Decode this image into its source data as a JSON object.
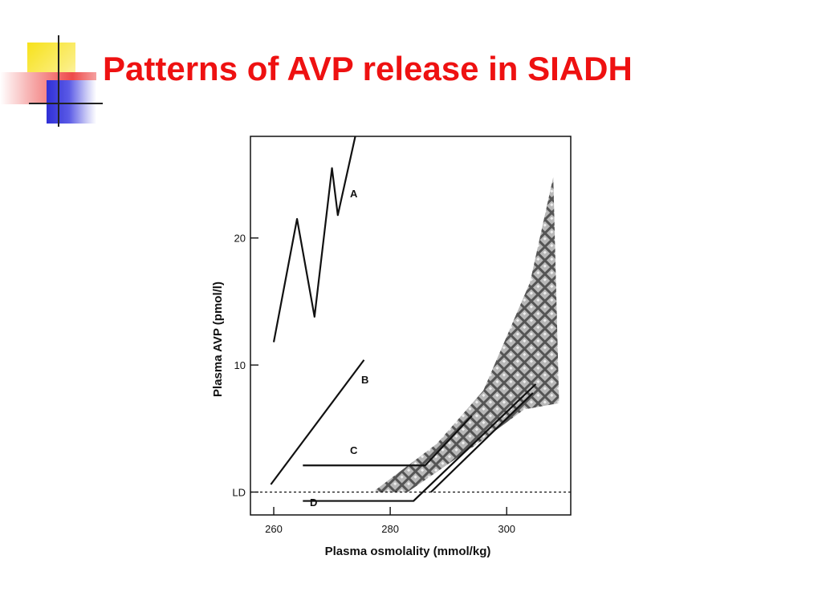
{
  "slide": {
    "title": "Patterns of AVP release in SIADH"
  },
  "colors": {
    "title": "#ee1111",
    "logo_yellow": "#f7e21a",
    "logo_blue": "#2f2fd6",
    "logo_red": "#ee4a4a",
    "ink": "#111111",
    "band": "#8a8a8a"
  },
  "chart_data": {
    "type": "line",
    "title": "",
    "xlabel": "Plasma osmolality (mmol/kg)",
    "ylabel": "Plasma AVP  (pmol/l)",
    "xlim": [
      256,
      311
    ],
    "ylim": [
      -1.8,
      28
    ],
    "x_ticks": [
      {
        "value": 260,
        "label": "260"
      },
      {
        "value": 280,
        "label": "280"
      },
      {
        "value": 300,
        "label": "300"
      }
    ],
    "y_ticks": [
      {
        "value": 0,
        "label": "LD"
      },
      {
        "value": 10,
        "label": "10"
      },
      {
        "value": 20,
        "label": "20"
      }
    ],
    "detection_limit": {
      "y": 0,
      "label": "LD",
      "style": "dashed"
    },
    "series": [
      {
        "name": "A",
        "points": [
          [
            260,
            11.8
          ],
          [
            264,
            21.5
          ],
          [
            267,
            13.8
          ],
          [
            270,
            25.5
          ],
          [
            271,
            21.8
          ],
          [
            274,
            28
          ]
        ]
      },
      {
        "name": "B",
        "points": [
          [
            259.5,
            0.6
          ],
          [
            275.5,
            10.4
          ]
        ]
      },
      {
        "name": "C",
        "points": [
          [
            265,
            2.1
          ],
          [
            286,
            2.1
          ],
          [
            294,
            6.0
          ]
        ]
      },
      {
        "name": "D",
        "points": [
          [
            265,
            -0.7
          ],
          [
            284,
            -0.7
          ],
          [
            305,
            8.5
          ]
        ]
      },
      {
        "name": "",
        "points": [
          [
            287,
            0
          ],
          [
            304.5,
            7.8
          ]
        ]
      }
    ],
    "normal_range_band": {
      "pattern": "crosshatch",
      "lower": [
        [
          283,
          0
        ],
        [
          295,
          3.8
        ],
        [
          303,
          6.5
        ],
        [
          309,
          7
        ]
      ],
      "upper": [
        [
          277,
          0
        ],
        [
          288,
          3.8
        ],
        [
          296,
          8
        ],
        [
          304,
          16.5
        ],
        [
          308,
          24.8
        ]
      ]
    }
  }
}
